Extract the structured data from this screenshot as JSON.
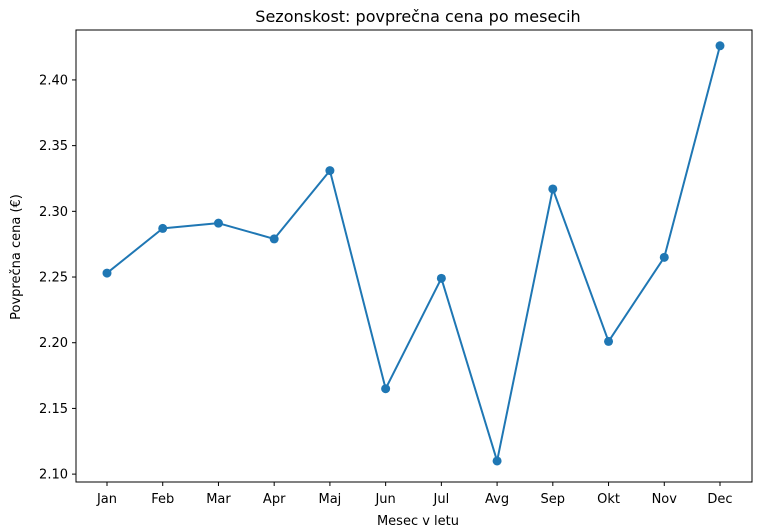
{
  "chart_data": {
    "type": "line",
    "title": "Sezonskost: povprečna cena po mesecih",
    "xlabel": "Mesec v letu",
    "ylabel": "Povprečna cena (€)",
    "categories": [
      "Jan",
      "Feb",
      "Mar",
      "Apr",
      "Maj",
      "Jun",
      "Jul",
      "Avg",
      "Sep",
      "Okt",
      "Nov",
      "Dec"
    ],
    "series": [
      {
        "values": [
          2.253,
          2.287,
          2.291,
          2.279,
          2.331,
          2.165,
          2.249,
          2.11,
          2.317,
          2.201,
          2.265,
          2.426
        ],
        "color": "#1f77b4",
        "marker": "circle"
      }
    ],
    "ylim": [
      2.094,
      2.438
    ],
    "yticks": [
      "2.10",
      "2.15",
      "2.20",
      "2.25",
      "2.30",
      "2.35",
      "2.40"
    ],
    "grid": false,
    "legend": "none"
  }
}
